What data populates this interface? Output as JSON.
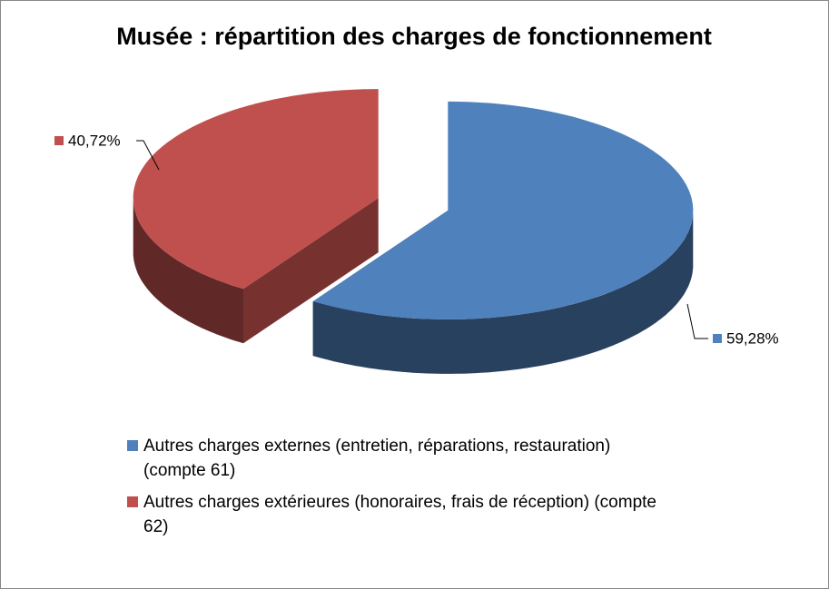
{
  "chart_data": {
    "type": "pie",
    "title": "Musée : répartition des charges de fonctionnement",
    "categories": [
      "Autres charges externes (entretien, réparations, restauration) (compte 61)",
      "Autres charges extérieures (honoraires, frais de réception) (compte 62)"
    ],
    "values": [
      59.28,
      40.72
    ],
    "value_labels": [
      "59,28%",
      "40,72%"
    ],
    "colors": [
      "#4f81bd",
      "#c0504d"
    ]
  }
}
